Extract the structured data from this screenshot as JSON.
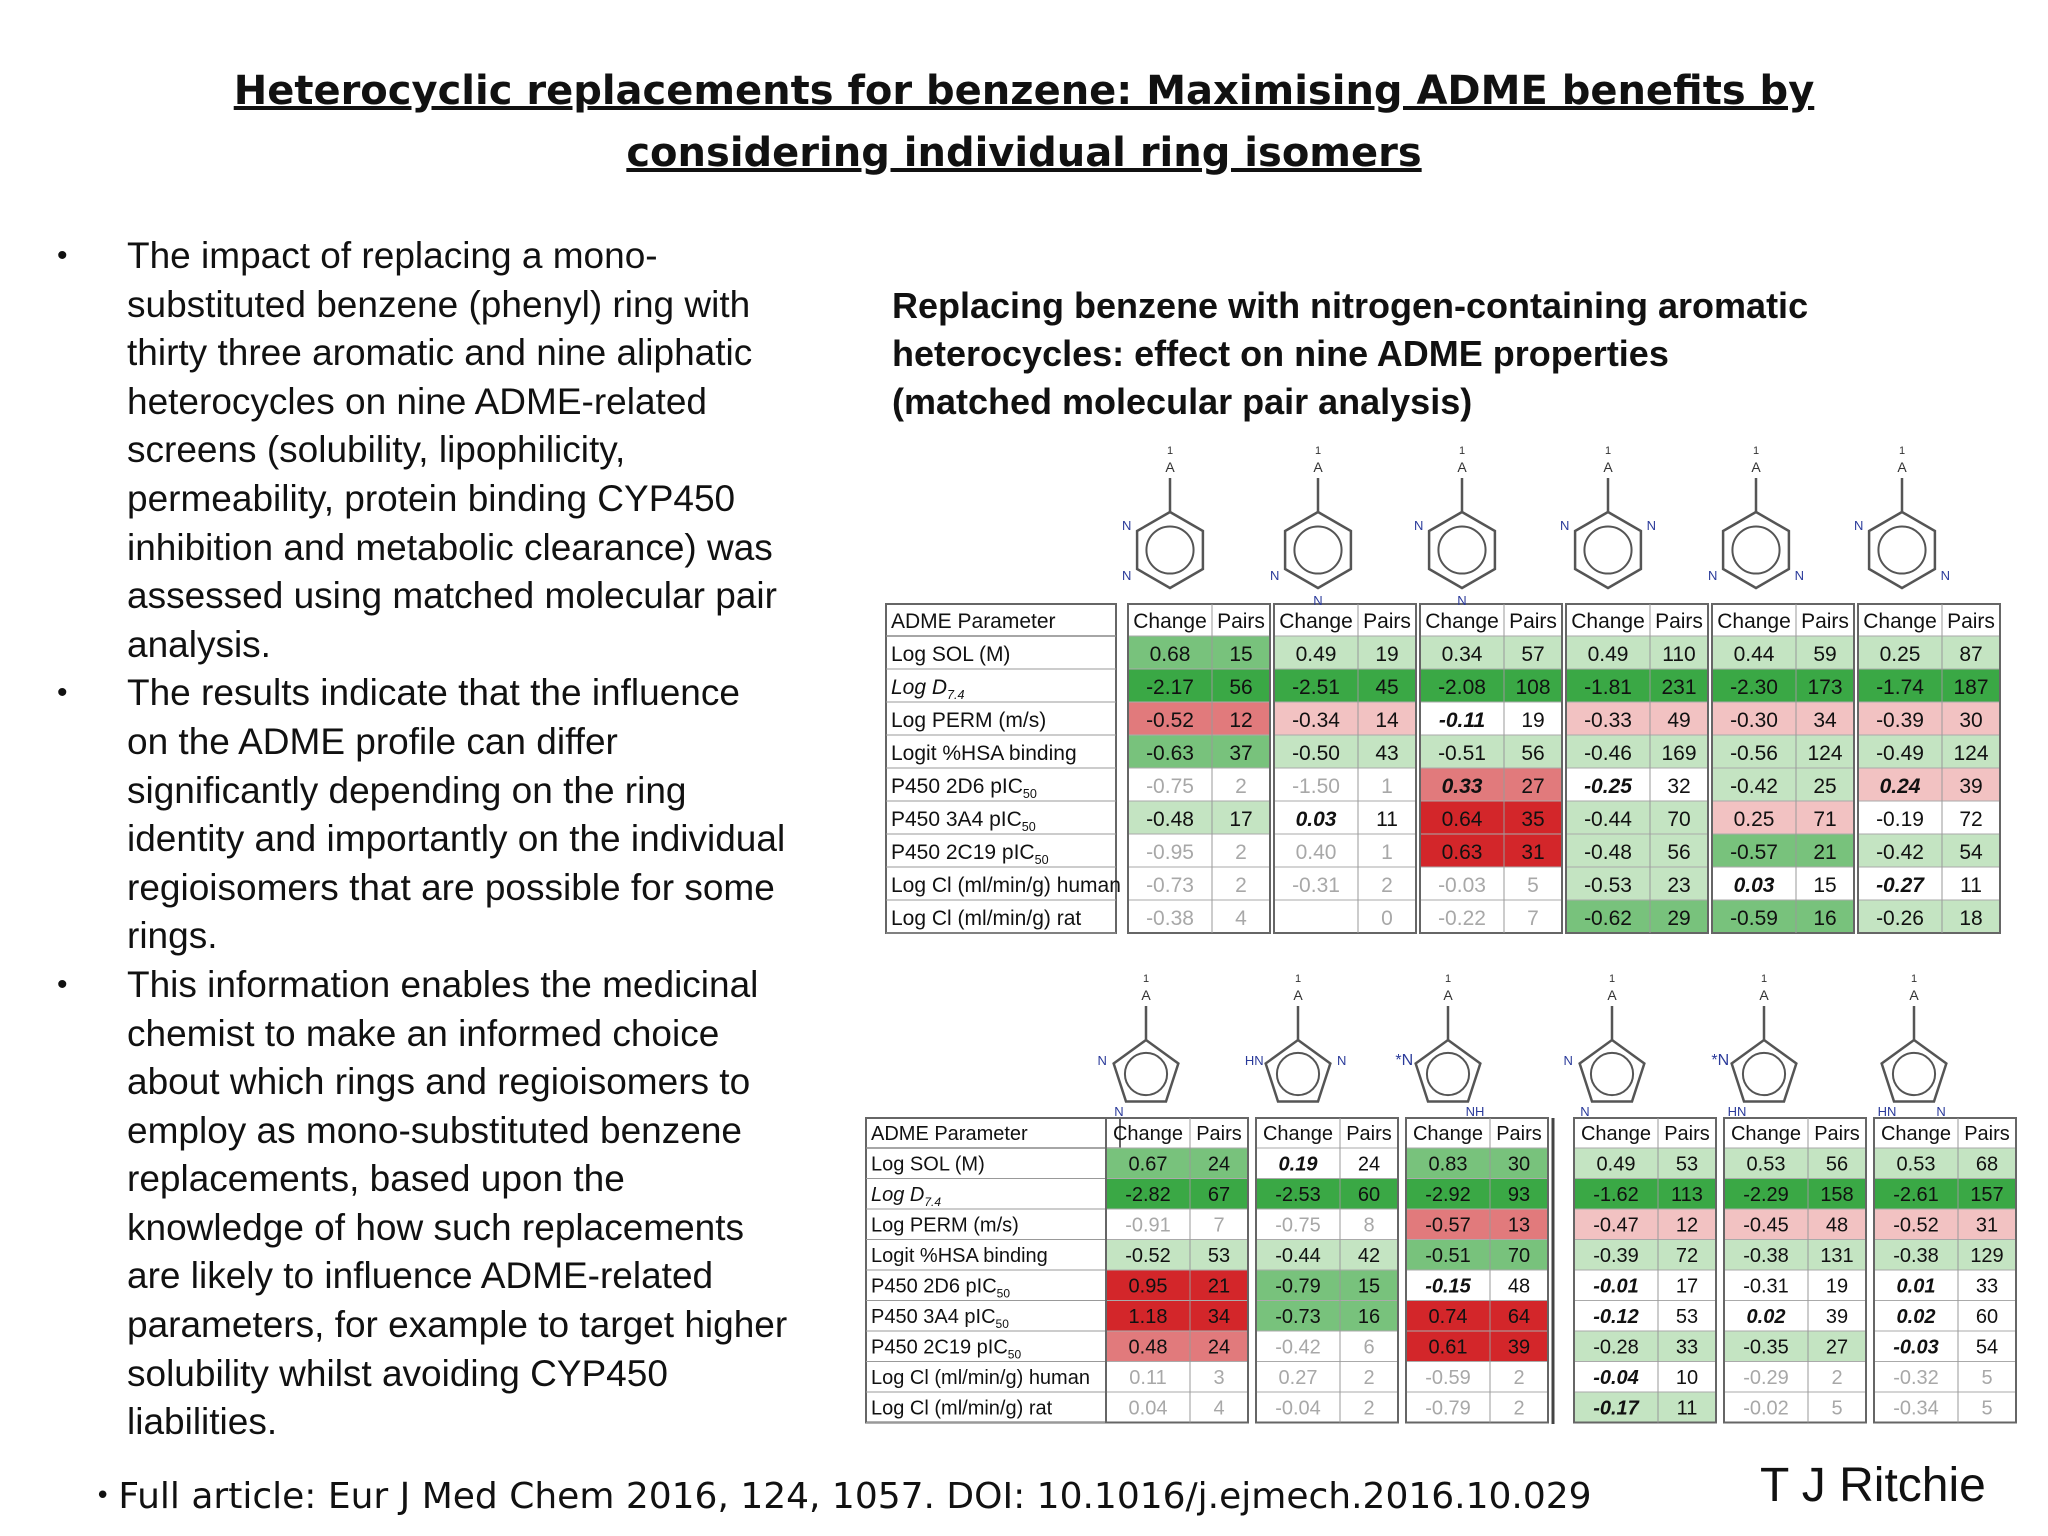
{
  "title": {
    "line1": "Heterocyclic replacements for benzene: Maximising ADME benefits by",
    "line2": "considering individual ring isomers"
  },
  "bullets": [
    "The impact of replacing a mono-substituted benzene (phenyl) ring with thirty three aromatic and nine aliphatic heterocycles on nine ADME-related screens (solubility, lipophilicity, permeability, protein binding CYP450 inhibition and metabolic clearance) was assessed using matched molecular pair analysis.",
    "The results indicate that the influence on the ADME profile can differ significantly depending on the ring identity and importantly on the individual regioisomers that are possible for some rings.",
    "This information enables the medicinal chemist to make an informed choice about which rings and regioisomers to employ as mono-substituted benzene replacements, based upon the knowledge of how such replacements are likely to influence ADME-related parameters, for example to target higher solubility whilst avoiding CYP450 liabilities."
  ],
  "bullet_lines": [
    [
      "The impact of replacing a mono-",
      "substituted benzene (phenyl) ring with",
      "thirty three aromatic and nine aliphatic",
      "heterocycles on nine ADME-related",
      "screens (solubility, lipophilicity,",
      "permeability, protein binding CYP450",
      "inhibition and metabolic clearance) was",
      "assessed using matched molecular pair",
      "analysis."
    ],
    [
      "The results indicate that the influence",
      "on the ADME profile can differ",
      "significantly depending on the ring",
      "identity and importantly on the individual",
      "regioisomers that are possible for some",
      "rings."
    ],
    [
      "This information enables the medicinal",
      "chemist to make an informed choice",
      "about which rings and regioisomers to",
      "employ as mono-substituted benzene",
      "replacements, based upon the",
      "knowledge of how such replacements",
      "are likely to influence ADME-related",
      "parameters, for example to target higher",
      "solubility whilst avoiding CYP450",
      "liabilities."
    ]
  ],
  "subtitle_lines": [
    "Replacing benzene with nitrogen-containing aromatic",
    "heterocycles: effect on nine ADME properties",
    "(matched molecular pair analysis)"
  ],
  "footer": "Full article: Eur J Med Chem 2016, 124, 1057. DOI: 10.1016/j.ejmech.2016.10.029",
  "author": "T J Ritchie",
  "column_header": {
    "param": "ADME Parameter",
    "change": "Change",
    "pairs": "Pairs"
  },
  "parameters": [
    {
      "main": "Log SOL (M)",
      "sub": ""
    },
    {
      "main": "Log D",
      "sub": "7.4",
      "italic": true
    },
    {
      "main": "Log PERM (m/s)",
      "sub": ""
    },
    {
      "main": "Logit %HSA binding",
      "sub": ""
    },
    {
      "main": "P450 2D6 pIC",
      "sub": "50"
    },
    {
      "main": "P450 3A4 pIC",
      "sub": "50"
    },
    {
      "main": "P450 2C19 pIC",
      "sub": "50"
    },
    {
      "main": "Log Cl (ml/min/g) human",
      "sub": ""
    },
    {
      "main": "Log Cl (ml/min/g) rat",
      "sub": ""
    }
  ],
  "colors": {
    "green_strong": "#3aa845",
    "green_mid": "#78c27c",
    "green_light": "#c4e4c2",
    "red_strong": "#d3262a",
    "red_mid": "#e17a7c",
    "red_light": "#f2c2c2",
    "neutral": "#ffffff",
    "faded_text": "#a8a8a8"
  },
  "rings": {
    "top": [
      {
        "name": "pyridazin-3-yl",
        "atom_labels": [
          "1",
          "A",
          "N",
          "N"
        ]
      },
      {
        "name": "pyridazin-4-yl",
        "atom_labels": [
          "1",
          "A",
          "N",
          "N"
        ]
      },
      {
        "name": "pyrimidin-4-yl",
        "atom_labels": [
          "1",
          "A",
          "N",
          "N"
        ]
      },
      {
        "name": "pyrimidin-2-yl",
        "atom_labels": [
          "1",
          "A",
          "N",
          "N"
        ]
      },
      {
        "name": "pyrimidin-5-yl",
        "atom_labels": [
          "1",
          "A",
          "N",
          "N"
        ]
      },
      {
        "name": "pyrazin-2-yl",
        "atom_labels": [
          "1",
          "A",
          "N",
          "N"
        ]
      }
    ],
    "bottom": [
      {
        "name": "imidazol-1-yl",
        "atom_labels": [
          "1",
          "A",
          "N",
          "N"
        ]
      },
      {
        "name": "imidazol-2-yl",
        "atom_labels": [
          "1",
          "A",
          "HN",
          "N"
        ]
      },
      {
        "name": "imidazol-4-yl",
        "atom_labels": [
          "1",
          "A",
          "*N",
          "NH"
        ]
      },
      {
        "name": "pyrazol-1-yl",
        "atom_labels": [
          "1",
          "A",
          "N",
          "N"
        ]
      },
      {
        "name": "pyrazol-3-yl",
        "atom_labels": [
          "1",
          "A",
          "*N",
          "HN"
        ]
      },
      {
        "name": "pyrazol-4-yl",
        "atom_labels": [
          "1",
          "A",
          "HN",
          "N"
        ]
      }
    ]
  },
  "tables": {
    "top": [
      [
        [
          "0.68",
          "15",
          "gm",
          ""
        ],
        [
          "-2.17",
          "56",
          "gs",
          ""
        ],
        [
          "-0.52",
          "12",
          "rm",
          ""
        ],
        [
          "-0.63",
          "37",
          "gm",
          ""
        ],
        [
          "-0.75",
          "2",
          "n",
          "f"
        ],
        [
          "-0.48",
          "17",
          "gl",
          ""
        ],
        [
          "-0.95",
          "2",
          "n",
          "f"
        ],
        [
          "-0.73",
          "2",
          "n",
          "f"
        ],
        [
          "-0.38",
          "4",
          "n",
          "f"
        ]
      ],
      [
        [
          "0.49",
          "19",
          "gl",
          ""
        ],
        [
          "-2.51",
          "45",
          "gs",
          ""
        ],
        [
          "-0.34",
          "14",
          "rl",
          ""
        ],
        [
          "-0.50",
          "43",
          "gl",
          ""
        ],
        [
          "-1.50",
          "1",
          "n",
          "f"
        ],
        [
          "0.03",
          "11",
          "n",
          "bi"
        ],
        [
          "0.40",
          "1",
          "n",
          "f"
        ],
        [
          "-0.31",
          "2",
          "n",
          "f"
        ],
        [
          "",
          "0",
          "n",
          "f"
        ]
      ],
      [
        [
          "0.34",
          "57",
          "gl",
          ""
        ],
        [
          "-2.08",
          "108",
          "gs",
          ""
        ],
        [
          "-0.11",
          "19",
          "n",
          "bi"
        ],
        [
          "-0.51",
          "56",
          "gl",
          ""
        ],
        [
          "0.33",
          "27",
          "rm",
          "bi"
        ],
        [
          "0.64",
          "35",
          "rs",
          ""
        ],
        [
          "0.63",
          "31",
          "rs",
          ""
        ],
        [
          "-0.03",
          "5",
          "n",
          "f"
        ],
        [
          "-0.22",
          "7",
          "n",
          "f"
        ]
      ],
      [
        [
          "0.49",
          "110",
          "gl",
          ""
        ],
        [
          "-1.81",
          "231",
          "gs",
          ""
        ],
        [
          "-0.33",
          "49",
          "rl",
          ""
        ],
        [
          "-0.46",
          "169",
          "gl",
          ""
        ],
        [
          "-0.25",
          "32",
          "n",
          "bi"
        ],
        [
          "-0.44",
          "70",
          "gl",
          ""
        ],
        [
          "-0.48",
          "56",
          "gl",
          ""
        ],
        [
          "-0.53",
          "23",
          "gl",
          ""
        ],
        [
          "-0.62",
          "29",
          "gm",
          ""
        ]
      ],
      [
        [
          "0.44",
          "59",
          "gl",
          ""
        ],
        [
          "-2.30",
          "173",
          "gs",
          ""
        ],
        [
          "-0.30",
          "34",
          "rl",
          ""
        ],
        [
          "-0.56",
          "124",
          "gl",
          ""
        ],
        [
          "-0.42",
          "25",
          "gl",
          ""
        ],
        [
          "0.25",
          "71",
          "rl",
          ""
        ],
        [
          "-0.57",
          "21",
          "gm",
          ""
        ],
        [
          "0.03",
          "15",
          "n",
          "bi"
        ],
        [
          "-0.59",
          "16",
          "gm",
          ""
        ]
      ],
      [
        [
          "0.25",
          "87",
          "gl",
          ""
        ],
        [
          "-1.74",
          "187",
          "gs",
          ""
        ],
        [
          "-0.39",
          "30",
          "rl",
          ""
        ],
        [
          "-0.49",
          "124",
          "gl",
          ""
        ],
        [
          "0.24",
          "39",
          "rl",
          "bi"
        ],
        [
          "-0.19",
          "72",
          "n",
          ""
        ],
        [
          "-0.42",
          "54",
          "gl",
          ""
        ],
        [
          "-0.27",
          "11",
          "n",
          "bi"
        ],
        [
          "-0.26",
          "18",
          "gl",
          ""
        ]
      ]
    ],
    "bottom": [
      [
        [
          "0.67",
          "24",
          "gm",
          ""
        ],
        [
          "-2.82",
          "67",
          "gs",
          ""
        ],
        [
          "-0.91",
          "7",
          "n",
          "f"
        ],
        [
          "-0.52",
          "53",
          "gl",
          ""
        ],
        [
          "0.95",
          "21",
          "rs",
          ""
        ],
        [
          "1.18",
          "34",
          "rs",
          ""
        ],
        [
          "0.48",
          "24",
          "rm",
          ""
        ],
        [
          "0.11",
          "3",
          "n",
          "f"
        ],
        [
          "0.04",
          "4",
          "n",
          "f"
        ]
      ],
      [
        [
          "0.19",
          "24",
          "n",
          "bi"
        ],
        [
          "-2.53",
          "60",
          "gs",
          ""
        ],
        [
          "-0.75",
          "8",
          "n",
          "f"
        ],
        [
          "-0.44",
          "42",
          "gl",
          ""
        ],
        [
          "-0.79",
          "15",
          "gm",
          ""
        ],
        [
          "-0.73",
          "16",
          "gm",
          ""
        ],
        [
          "-0.42",
          "6",
          "n",
          "f"
        ],
        [
          "0.27",
          "2",
          "n",
          "f"
        ],
        [
          "-0.04",
          "2",
          "n",
          "f"
        ]
      ],
      [
        [
          "0.83",
          "30",
          "gm",
          ""
        ],
        [
          "-2.92",
          "93",
          "gs",
          ""
        ],
        [
          "-0.57",
          "13",
          "rm",
          ""
        ],
        [
          "-0.51",
          "70",
          "gm",
          ""
        ],
        [
          "-0.15",
          "48",
          "n",
          "bi"
        ],
        [
          "0.74",
          "64",
          "rs",
          ""
        ],
        [
          "0.61",
          "39",
          "rs",
          ""
        ],
        [
          "-0.59",
          "2",
          "n",
          "f"
        ],
        [
          "-0.79",
          "2",
          "n",
          "f"
        ]
      ],
      [
        [
          "0.49",
          "53",
          "gl",
          ""
        ],
        [
          "-1.62",
          "113",
          "gs",
          ""
        ],
        [
          "-0.47",
          "12",
          "rl",
          ""
        ],
        [
          "-0.39",
          "72",
          "gl",
          ""
        ],
        [
          "-0.01",
          "17",
          "n",
          "bi"
        ],
        [
          "-0.12",
          "53",
          "n",
          "bi"
        ],
        [
          "-0.28",
          "33",
          "gl",
          ""
        ],
        [
          "-0.04",
          "10",
          "n",
          "bi"
        ],
        [
          "-0.17",
          "11",
          "gl",
          "bi"
        ]
      ],
      [
        [
          "0.53",
          "56",
          "gl",
          ""
        ],
        [
          "-2.29",
          "158",
          "gs",
          ""
        ],
        [
          "-0.45",
          "48",
          "rl",
          ""
        ],
        [
          "-0.38",
          "131",
          "gl",
          ""
        ],
        [
          "-0.31",
          "19",
          "n",
          ""
        ],
        [
          "0.02",
          "39",
          "n",
          "bi"
        ],
        [
          "-0.35",
          "27",
          "gl",
          ""
        ],
        [
          "-0.29",
          "2",
          "n",
          "f"
        ],
        [
          "-0.02",
          "5",
          "n",
          "f"
        ]
      ],
      [
        [
          "0.53",
          "68",
          "gl",
          ""
        ],
        [
          "-2.61",
          "157",
          "gs",
          ""
        ],
        [
          "-0.52",
          "31",
          "rl",
          ""
        ],
        [
          "-0.38",
          "129",
          "gl",
          ""
        ],
        [
          "0.01",
          "33",
          "n",
          "bi"
        ],
        [
          "0.02",
          "60",
          "n",
          "bi"
        ],
        [
          "-0.03",
          "54",
          "n",
          "bi"
        ],
        [
          "-0.32",
          "5",
          "n",
          "f"
        ],
        [
          "-0.34",
          "5",
          "n",
          "f"
        ]
      ]
    ]
  }
}
